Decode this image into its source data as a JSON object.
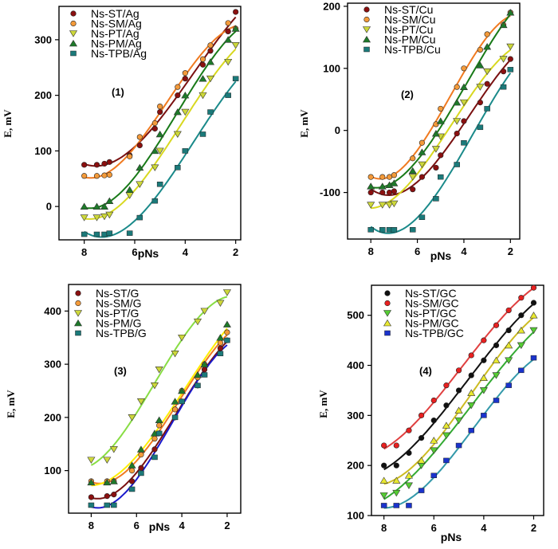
{
  "chart_data": [
    {
      "type": "scatter",
      "panel_label": "(1)",
      "xlabel": "pNs",
      "ylabel": "E, mV",
      "xlim": [
        9,
        1.8
      ],
      "ylim": [
        -60,
        360
      ],
      "xticks": [
        8,
        6,
        4,
        2
      ],
      "xtick_labels": [
        "8",
        "6",
        "4",
        "2"
      ],
      "yticks": [
        0,
        100,
        200,
        300
      ],
      "ytick_labels": [
        "0",
        "100",
        "200",
        "300"
      ],
      "x": [
        8,
        7.5,
        7.2,
        7,
        6.2,
        5.8,
        5.2,
        5,
        4.3,
        4,
        3.3,
        3,
        2.3,
        2
      ],
      "series": [
        {
          "name": "Ns-ST/Ag",
          "marker": "circle",
          "color": "#8b1010",
          "curve": "#7a1010",
          "values": [
            75,
            75,
            77,
            80,
            92,
            110,
            140,
            170,
            200,
            230,
            255,
            280,
            315,
            350
          ]
        },
        {
          "name": "Ns-SM/Ag",
          "marker": "circle",
          "color": "#f39a3a",
          "curve": "#f07a20",
          "values": [
            55,
            55,
            56,
            57,
            90,
            125,
            150,
            180,
            215,
            240,
            265,
            290,
            330,
            320
          ]
        },
        {
          "name": "Ns-PT/Ag",
          "marker": "tri-down",
          "color": "#cdd83a",
          "curve": "#d8d820",
          "values": [
            -20,
            -20,
            -18,
            -15,
            20,
            40,
            70,
            100,
            130,
            170,
            200,
            230,
            260,
            290
          ]
        },
        {
          "name": "Ns-PM/Ag",
          "marker": "tri-up",
          "color": "#1e7a2a",
          "curve": "#187a18",
          "values": [
            0,
            0,
            0,
            10,
            30,
            70,
            100,
            130,
            170,
            200,
            230,
            260,
            300,
            320
          ]
        },
        {
          "name": "Ns-TPB/Ag",
          "marker": "square",
          "color": "#1b7a7a",
          "curve": "#1a8a8a",
          "values": [
            -50,
            -50,
            -50,
            -48,
            -48,
            -20,
            10,
            40,
            70,
            100,
            130,
            170,
            200,
            230
          ]
        }
      ]
    },
    {
      "type": "scatter",
      "panel_label": "(2)",
      "xlabel": "pNs",
      "ylabel": "E, mV",
      "xlim": [
        9,
        1.6
      ],
      "ylim": [
        -175,
        205
      ],
      "xticks": [
        8,
        6,
        4,
        2
      ],
      "xtick_labels": [
        "8",
        "6",
        "4",
        "2"
      ],
      "yticks": [
        -100,
        0,
        100,
        200
      ],
      "ytick_labels": [
        "-100",
        "0",
        "100",
        "200"
      ],
      "x": [
        8,
        7.5,
        7.2,
        7,
        6.2,
        5.8,
        5.2,
        5,
        4.3,
        4,
        3.3,
        3,
        2.3,
        2
      ],
      "series": [
        {
          "name": "Ns-ST/Cu",
          "marker": "circle",
          "color": "#8b1010",
          "curve": "#7a1010",
          "values": [
            -100,
            -100,
            -100,
            -98,
            -95,
            -75,
            -60,
            -40,
            -5,
            15,
            45,
            75,
            95,
            115
          ]
        },
        {
          "name": "Ns-SM/Cu",
          "marker": "circle",
          "color": "#f39a3a",
          "curve": "#f07a20",
          "values": [
            -75,
            -75,
            -75,
            -72,
            -45,
            -20,
            10,
            35,
            70,
            100,
            130,
            155,
            170,
            190
          ]
        },
        {
          "name": "Ns-PT/Cu",
          "marker": "tri-down",
          "color": "#cdd83a",
          "curve": "#d8d820",
          "values": [
            -120,
            -120,
            -120,
            -118,
            -75,
            -55,
            -30,
            -10,
            15,
            45,
            70,
            95,
            115,
            135
          ]
        },
        {
          "name": "Ns-PM/Cu",
          "marker": "tri-up",
          "color": "#1e7a2a",
          "curve": "#187a18",
          "values": [
            -90,
            -90,
            -88,
            -85,
            -65,
            -35,
            -5,
            15,
            45,
            70,
            105,
            135,
            170,
            190
          ]
        },
        {
          "name": "Ns-TPB/Cu",
          "marker": "square",
          "color": "#1b7a7a",
          "curve": "#1a8a8a",
          "values": [
            -160,
            -160,
            -160,
            -160,
            -160,
            -140,
            -110,
            -75,
            -55,
            -20,
            5,
            35,
            70,
            98
          ]
        }
      ]
    },
    {
      "type": "scatter",
      "panel_label": "(3)",
      "xlabel": "pNs",
      "ylabel": "E, mV",
      "xlim": [
        9,
        1.4
      ],
      "ylim": [
        20,
        450
      ],
      "xticks": [
        8,
        6,
        4,
        2
      ],
      "xtick_labels": [
        "8",
        "6",
        "4",
        "2"
      ],
      "yticks": [
        100,
        200,
        300,
        400
      ],
      "ytick_labels": [
        "100",
        "200",
        "300",
        "400"
      ],
      "x": [
        8,
        7.3,
        7,
        6.2,
        5.8,
        5.2,
        5,
        4.3,
        4,
        3.3,
        3,
        2.3,
        2
      ],
      "series": [
        {
          "name": "Ns-ST/G",
          "marker": "circle",
          "color": "#8b1010",
          "curve": "#7a1010",
          "values": [
            50,
            52,
            55,
            80,
            105,
            140,
            170,
            200,
            230,
            260,
            290,
            330,
            345
          ]
        },
        {
          "name": "Ns-SM/G",
          "marker": "circle",
          "color": "#f39a3a",
          "curve": "#f07a20",
          "values": [
            80,
            80,
            80,
            100,
            130,
            160,
            185,
            215,
            250,
            275,
            300,
            340,
            360
          ]
        },
        {
          "name": "Ns-PT/G",
          "marker": "tri-down",
          "color": "#cdd83a",
          "curve": "#88dd44",
          "values": [
            120,
            120,
            140,
            200,
            230,
            260,
            290,
            320,
            350,
            380,
            400,
            415,
            435
          ]
        },
        {
          "name": "Ns-PM/G",
          "marker": "tri-up",
          "color": "#1e7a2a",
          "curve": "#ffee00",
          "values": [
            78,
            78,
            80,
            110,
            140,
            170,
            195,
            230,
            250,
            280,
            300,
            350,
            375
          ]
        },
        {
          "name": "Ns-TPB/G",
          "marker": "square",
          "color": "#1b7a7a",
          "curve": "#1a1acc",
          "values": [
            35,
            35,
            35,
            65,
            95,
            125,
            170,
            200,
            230,
            260,
            280,
            320,
            345
          ]
        }
      ]
    },
    {
      "type": "scatter",
      "panel_label": "(4)",
      "xlabel": "pNs",
      "ylabel": "E, mV",
      "xlim": [
        8.5,
        1.6
      ],
      "ylim": [
        100,
        560
      ],
      "xticks": [
        8,
        6,
        4,
        2
      ],
      "xtick_labels": [
        "8",
        "6",
        "4",
        "2"
      ],
      "yticks": [
        100,
        200,
        300,
        400,
        500
      ],
      "ytick_labels": [
        "100",
        "200",
        "300",
        "400",
        "500"
      ],
      "x": [
        8,
        7.5,
        7,
        6.5,
        6,
        5.5,
        5,
        4.5,
        4,
        3.5,
        3,
        2.5,
        2
      ],
      "series": [
        {
          "name": "Ns-ST/GC",
          "marker": "circle",
          "color": "#111111",
          "curve": "#111111",
          "values": [
            200,
            200,
            225,
            255,
            290,
            320,
            350,
            380,
            410,
            440,
            470,
            500,
            525
          ]
        },
        {
          "name": "Ns-SM/GC",
          "marker": "circle",
          "color": "#e82020",
          "curve": "#e04040",
          "values": [
            240,
            240,
            270,
            300,
            330,
            360,
            390,
            420,
            450,
            480,
            510,
            535,
            555
          ]
        },
        {
          "name": "Ns-PT/GC",
          "marker": "tri-down",
          "color": "#55cc33",
          "curve": "#33aa33",
          "values": [
            140,
            145,
            160,
            200,
            230,
            260,
            290,
            320,
            350,
            380,
            410,
            440,
            470
          ]
        },
        {
          "name": "Ns-PM/GC",
          "marker": "tri-up",
          "color": "#e8e830",
          "curve": "#ccbb22",
          "values": [
            170,
            170,
            180,
            210,
            250,
            280,
            310,
            345,
            375,
            410,
            440,
            470,
            500
          ]
        },
        {
          "name": "Ns-TPB/GC",
          "marker": "square",
          "color": "#1a33cc",
          "curve": "#3399aa",
          "values": [
            120,
            120,
            120,
            150,
            180,
            210,
            240,
            270,
            300,
            330,
            360,
            390,
            415
          ]
        }
      ]
    }
  ]
}
